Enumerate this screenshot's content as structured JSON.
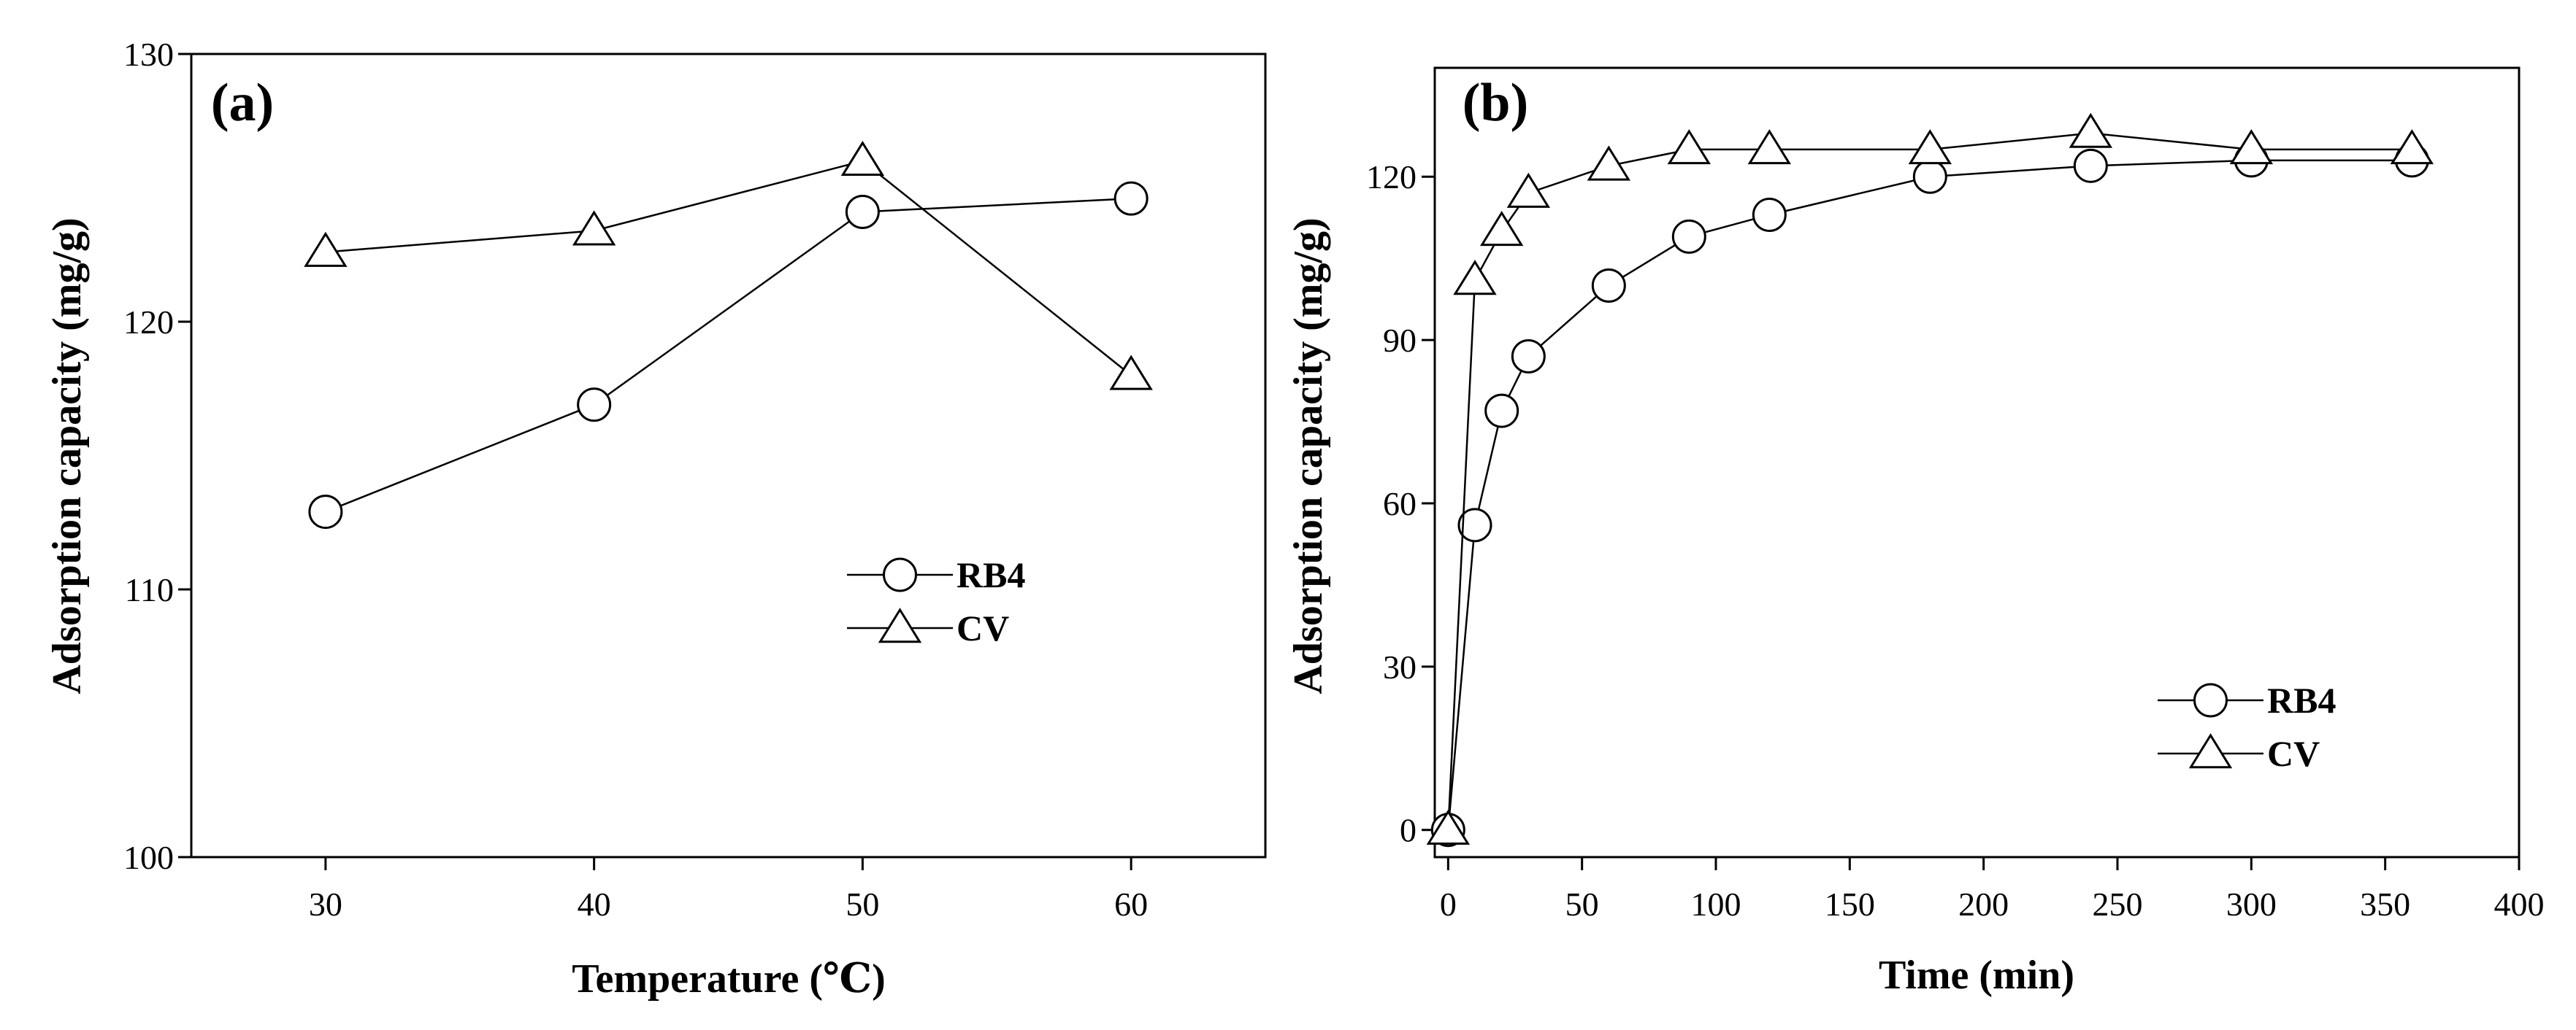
{
  "chart_data": [
    {
      "type": "line",
      "panel_label": "(a)",
      "xlabel": "Temperature (℃)",
      "ylabel": "Adsorption capacity (mg/g)",
      "xlim": [
        25,
        65
      ],
      "ylim": [
        100,
        130
      ],
      "xticks": [
        30,
        40,
        50,
        60
      ],
      "yticks": [
        100,
        110,
        120,
        130
      ],
      "grid": false,
      "legend_position": "center-right",
      "series": [
        {
          "name": "RB4",
          "marker": "circle",
          "x": [
            30,
            40,
            50,
            60
          ],
          "y": [
            112.9,
            116.9,
            124.1,
            124.6
          ]
        },
        {
          "name": "CV",
          "marker": "triangle",
          "x": [
            30,
            40,
            50,
            60
          ],
          "y": [
            122.6,
            123.4,
            126.0,
            118.0
          ]
        }
      ]
    },
    {
      "type": "line",
      "panel_label": "(b)",
      "xlabel": "Time (min)",
      "ylabel": "Adsorption capacity (mg/g)",
      "xlim": [
        -5,
        400
      ],
      "ylim": [
        -5,
        140
      ],
      "xticks": [
        0,
        50,
        100,
        150,
        200,
        250,
        300,
        350,
        400
      ],
      "yticks": [
        0,
        30,
        60,
        90,
        120
      ],
      "grid": false,
      "legend_position": "bottom-right",
      "series": [
        {
          "name": "RB4",
          "marker": "circle",
          "x": [
            0,
            10,
            20,
            30,
            60,
            90,
            120,
            180,
            240,
            300,
            360
          ],
          "y": [
            0,
            56,
            77,
            87,
            100,
            109,
            113,
            120,
            122,
            123,
            123
          ]
        },
        {
          "name": "CV",
          "marker": "triangle",
          "x": [
            0,
            10,
            20,
            30,
            60,
            90,
            120,
            180,
            240,
            300,
            360
          ],
          "y": [
            0,
            101,
            110,
            117,
            122,
            125,
            125,
            125,
            128,
            125,
            125
          ]
        }
      ]
    }
  ]
}
